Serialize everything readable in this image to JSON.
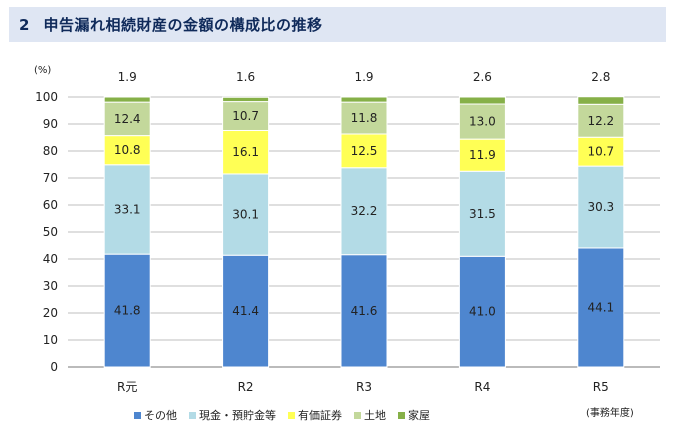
{
  "header": {
    "number": "2",
    "title": "申告漏れ相続財産の金額の構成比の推移"
  },
  "colors": {
    "header_bg": "#dfe6f3",
    "その他": "#4e86cf",
    "現金・預貯金等": "#b3dbe6",
    "有価証券": "#ffff55",
    "土地": "#c3d89b",
    "家屋": "#86b048"
  },
  "chart_data": {
    "type": "bar",
    "stacked": true,
    "title": "申告漏れ相続財産の金額の構成比の推移",
    "ylabel": "(%)",
    "xlabel": "(事務年度)",
    "ylim": [
      0,
      100
    ],
    "yticks": [
      0,
      10,
      20,
      30,
      40,
      50,
      60,
      70,
      80,
      90,
      100
    ],
    "categories": [
      "R元",
      "R2",
      "R3",
      "R4",
      "R5"
    ],
    "series": [
      {
        "name": "その他",
        "values": [
          41.8,
          41.4,
          41.6,
          41.0,
          44.1
        ],
        "labels": [
          "41.8",
          "41.4",
          "41.6",
          "41.0",
          "44.1"
        ]
      },
      {
        "name": "現金・預貯金等",
        "values": [
          33.1,
          30.1,
          32.2,
          31.5,
          30.3
        ],
        "labels": [
          "33.1",
          "30.1",
          "32.2",
          "31.5",
          "30.3"
        ]
      },
      {
        "name": "有価証券",
        "values": [
          10.8,
          16.1,
          12.5,
          11.9,
          10.7
        ],
        "labels": [
          "10.8",
          "16.1",
          "12.5",
          "11.9",
          "10.7"
        ]
      },
      {
        "name": "土地",
        "values": [
          12.4,
          10.7,
          11.8,
          13.0,
          12.2
        ],
        "labels": [
          "12.4",
          "10.7",
          "11.8",
          "13.0",
          "12.2"
        ]
      },
      {
        "name": "家屋",
        "values": [
          1.9,
          1.6,
          1.9,
          2.6,
          2.8
        ],
        "labels": [
          "1.9",
          "1.6",
          "1.9",
          "2.6",
          "2.8"
        ]
      }
    ],
    "top_labels": [
      "1.9",
      "1.6",
      "1.9",
      "2.6",
      "2.8"
    ],
    "legend": [
      "その他",
      "現金・預貯金等",
      "有価証券",
      "土地",
      "家屋"
    ],
    "legend_position": "bottom",
    "grid": true
  }
}
